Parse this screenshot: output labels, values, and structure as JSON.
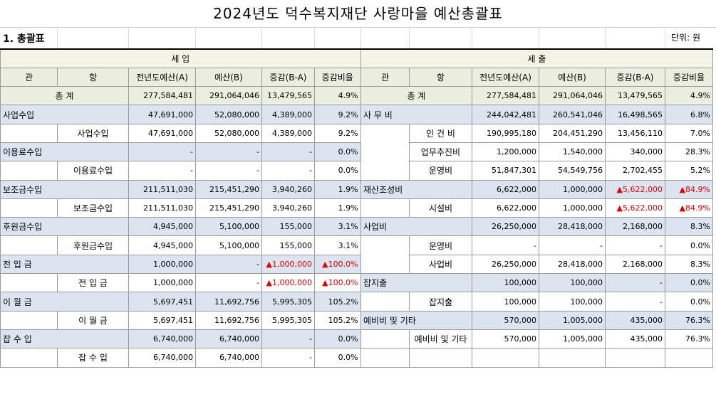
{
  "title": "2024년도 덕수복지재단 사랑마을 예산총괄표",
  "subtitle": "1. 총괄표",
  "unit": "단위: 원",
  "income": {
    "header": "세        입",
    "columns": [
      "관",
      "항",
      "전년도예산(A)",
      "예산(B)",
      "증감(B-A)",
      "증감비율"
    ],
    "total": {
      "label": "총    계",
      "prev": "277,584,481",
      "budget": "291,064,046",
      "diff": "13,479,565",
      "ratio": "4.9%"
    },
    "rows": [
      {
        "type": "group",
        "kwan": "사업수입",
        "hang": "",
        "prev": "47,691,000",
        "budget": "52,080,000",
        "diff": "4,389,000",
        "ratio": "9.2%"
      },
      {
        "type": "sub",
        "kwan": "",
        "hang": "사업수입",
        "prev": "47,691,000",
        "budget": "52,080,000",
        "diff": "4,389,000",
        "ratio": "9.2%"
      },
      {
        "type": "group",
        "kwan": "이용료수입",
        "hang": "",
        "prev": "-",
        "budget": "-",
        "diff": "-",
        "ratio": "0.0%"
      },
      {
        "type": "sub",
        "kwan": "",
        "hang": "이용료수입",
        "prev": "-",
        "budget": "-",
        "diff": "-",
        "ratio": "0.0%"
      },
      {
        "type": "group",
        "kwan": " 보조금수입",
        "hang": "",
        "prev": "211,511,030",
        "budget": "215,451,290",
        "diff": "3,940,260",
        "ratio": "1.9%"
      },
      {
        "type": "sub",
        "kwan": "",
        "hang": "보조금수입",
        "prev": "211,511,030",
        "budget": "215,451,290",
        "diff": "3,940,260",
        "ratio": "1.9%"
      },
      {
        "type": "group",
        "kwan": "후원금수입",
        "hang": "",
        "prev": "4,945,000",
        "budget": "5,100,000",
        "diff": "155,000",
        "ratio": "3.1%"
      },
      {
        "type": "sub",
        "kwan": "",
        "hang": "후원금수입",
        "prev": "4,945,000",
        "budget": "5,100,000",
        "diff": "155,000",
        "ratio": "3.1%"
      },
      {
        "type": "group",
        "kwan": " 전  입  금",
        "hang": "",
        "prev": "1,000,000",
        "budget": "-",
        "diff": "▲1,000,000",
        "ratio": "▲100.0%",
        "red": true
      },
      {
        "type": "sub",
        "kwan": "",
        "hang": "전  입  금",
        "prev": "1,000,000",
        "budget": "-",
        "diff": "▲1,000,000",
        "ratio": "▲100.0%",
        "red": true
      },
      {
        "type": "group",
        "kwan": "이  월  금",
        "hang": "",
        "prev": "5,697,451",
        "budget": "11,692,756",
        "diff": "5,995,305",
        "ratio": "105.2%"
      },
      {
        "type": "sub",
        "kwan": "",
        "hang": "이  월  금",
        "prev": "5,697,451",
        "budget": "11,692,756",
        "diff": "5,995,305",
        "ratio": "105.2%"
      },
      {
        "type": "group",
        "kwan": " 잡  수  입",
        "hang": "",
        "prev": "6,740,000",
        "budget": "6,740,000",
        "diff": "-",
        "ratio": "0.0%"
      },
      {
        "type": "sub",
        "kwan": "",
        "hang": "잡  수  입",
        "prev": "6,740,000",
        "budget": "6,740,000",
        "diff": "-",
        "ratio": "0.0%"
      }
    ]
  },
  "expense": {
    "header": "세        출",
    "columns": [
      "관",
      "항",
      "전년도예산(A)",
      "예산(B)",
      "증감(B-A)",
      "증감비율"
    ],
    "total": {
      "label": "총    계",
      "prev": "277,584,481",
      "budget": "291,064,046",
      "diff": "13,479,565",
      "ratio": "4.9%"
    },
    "rows": [
      {
        "type": "group",
        "kwan": " 사  무  비",
        "hang": "",
        "prev": "244,042,481",
        "budget": "260,541,046",
        "diff": "16,498,565",
        "ratio": "6.8%"
      },
      {
        "type": "sub",
        "kwan": "",
        "hang": "인  건  비",
        "prev": "190,995,180",
        "budget": "204,451,290",
        "diff": "13,456,110",
        "ratio": "7.0%"
      },
      {
        "type": "sub",
        "kwan": "",
        "hang": "업무추진비",
        "prev": "1,200,000",
        "budget": "1,540,000",
        "diff": "340,000",
        "ratio": "28.3%"
      },
      {
        "type": "sub",
        "kwan": "",
        "hang": "운영비",
        "prev": "51,847,301",
        "budget": "54,549,756",
        "diff": "2,702,455",
        "ratio": "5.2%"
      },
      {
        "type": "group",
        "kwan": "재산조성비",
        "hang": "",
        "prev": "6,622,000",
        "budget": "1,000,000",
        "diff": "▲5,622,000",
        "ratio": "▲84.9%",
        "red": true
      },
      {
        "type": "sub",
        "kwan": "",
        "hang": "시설비",
        "prev": "6,622,000",
        "budget": "1,000,000",
        "diff": "▲5,622,000",
        "ratio": "▲84.9%",
        "red": true
      },
      {
        "type": "group",
        "kwan": "사업비",
        "hang": "",
        "prev": "26,250,000",
        "budget": "28,418,000",
        "diff": "2,168,000",
        "ratio": "8.3%"
      },
      {
        "type": "sub",
        "kwan": "",
        "hang": "운영비",
        "prev": "-",
        "budget": "-",
        "diff": "-",
        "ratio": "0.0%"
      },
      {
        "type": "sub",
        "kwan": "",
        "hang": "사업비",
        "prev": "26,250,000",
        "budget": "28,418,000",
        "diff": "2,168,000",
        "ratio": "8.3%"
      },
      {
        "type": "group",
        "kwan": "잡지출",
        "hang": "",
        "prev": "100,000",
        "budget": "100,000",
        "diff": "-",
        "ratio": "0.0%"
      },
      {
        "type": "sub",
        "kwan": "",
        "hang": "잡지출",
        "prev": "100,000",
        "budget": "100,000",
        "diff": "-",
        "ratio": "0.0%"
      },
      {
        "type": "group",
        "kwan": "예비비 및 기타",
        "hang": "",
        "prev": "570,000",
        "budget": "1,005,000",
        "diff": "435,000",
        "ratio": "76.3%"
      },
      {
        "type": "sub",
        "kwan": "",
        "hang": "예비비 및 기타",
        "prev": "570,000",
        "budget": "1,005,000",
        "diff": "435,000",
        "ratio": "76.3%"
      },
      {
        "type": "blank",
        "kwan": "",
        "hang": "",
        "prev": "",
        "budget": "",
        "diff": "",
        "ratio": ""
      }
    ]
  }
}
